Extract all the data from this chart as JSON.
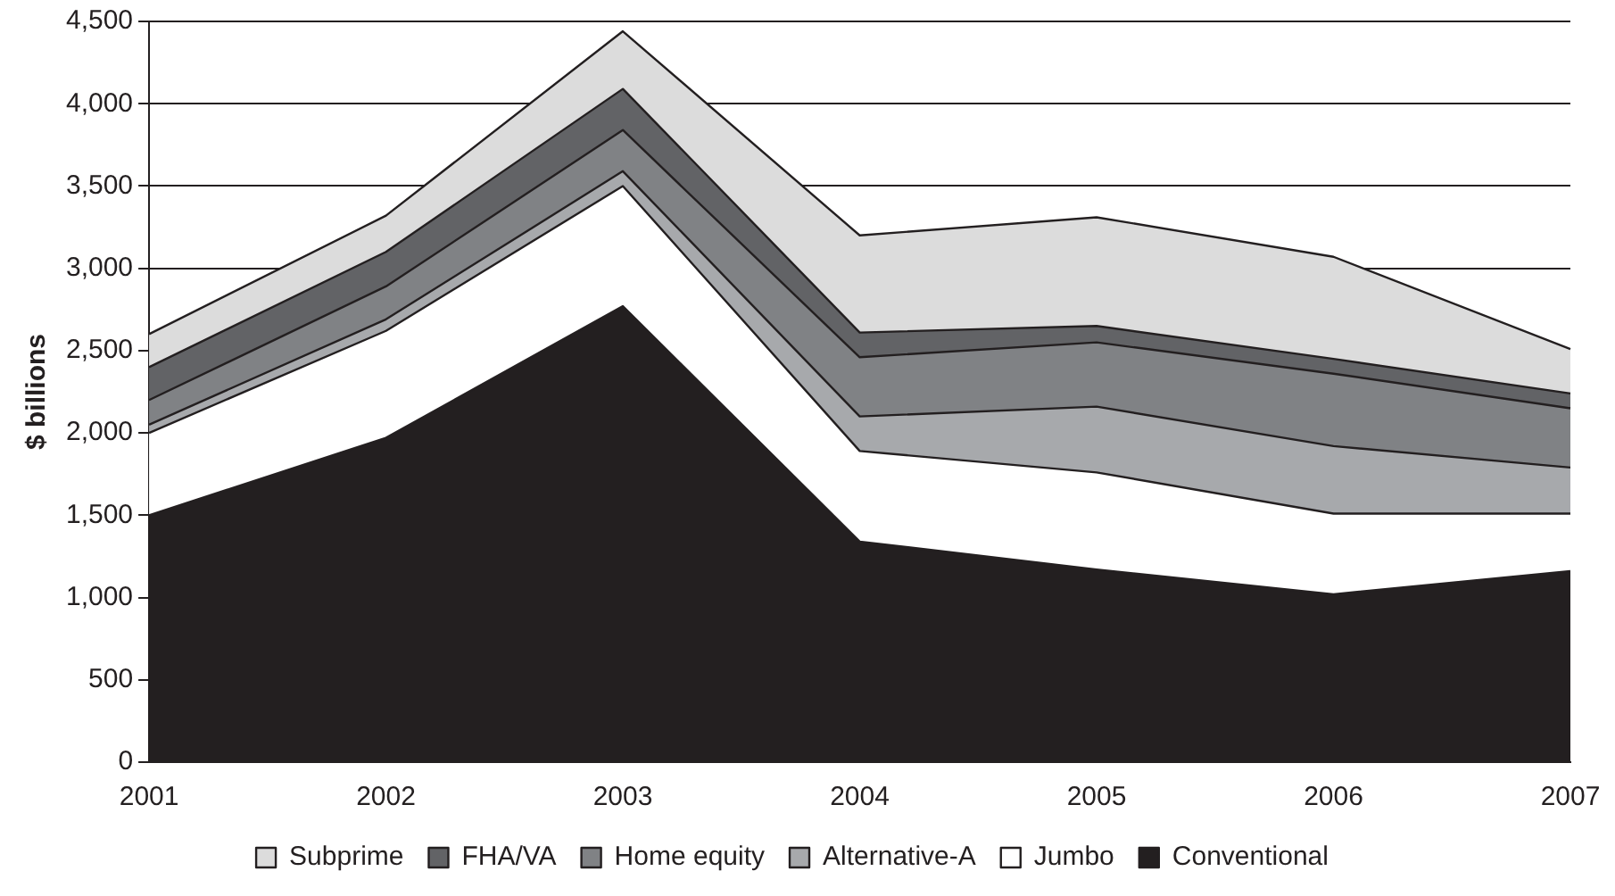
{
  "chart_data": {
    "type": "area",
    "stacked": true,
    "ylabel": "$ billions",
    "categories": [
      "2001",
      "2002",
      "2003",
      "2004",
      "2005",
      "2006",
      "2007"
    ],
    "series": [
      {
        "name": "Conventional",
        "color": "#231f20",
        "values": [
          1500,
          1970,
          2770,
          1340,
          1170,
          1020,
          1160
        ]
      },
      {
        "name": "Jumbo",
        "color": "#ffffff",
        "values": [
          500,
          650,
          730,
          550,
          590,
          490,
          350
        ]
      },
      {
        "name": "Alternative-A",
        "color": "#a7a9ac",
        "values": [
          50,
          70,
          90,
          210,
          400,
          410,
          280
        ]
      },
      {
        "name": "Home equity",
        "color": "#808285",
        "values": [
          150,
          200,
          250,
          360,
          390,
          440,
          360
        ]
      },
      {
        "name": "FHA/VA",
        "color": "#626366",
        "values": [
          200,
          210,
          250,
          150,
          100,
          90,
          90
        ]
      },
      {
        "name": "Subprime",
        "color": "#dcdcdc",
        "values": [
          200,
          220,
          350,
          590,
          660,
          620,
          270
        ]
      }
    ],
    "ylim": [
      0,
      4500
    ],
    "yticks": [
      0,
      {
        "value": 500,
        "label": "500"
      },
      {
        "value": 1000,
        "label": "1,000"
      },
      {
        "value": 1500,
        "label": "1,500"
      },
      {
        "value": 2000,
        "label": "2,000"
      },
      {
        "value": 2500,
        "label": "2,500"
      },
      {
        "value": 3000,
        "label": "3,000"
      },
      {
        "value": 3500,
        "label": "3,500"
      },
      {
        "value": 4000,
        "label": "4,000"
      },
      {
        "value": 4500,
        "label": "4,500"
      }
    ],
    "grid": "y",
    "legend": "bottom",
    "marker": "none",
    "line_style": "solid"
  }
}
